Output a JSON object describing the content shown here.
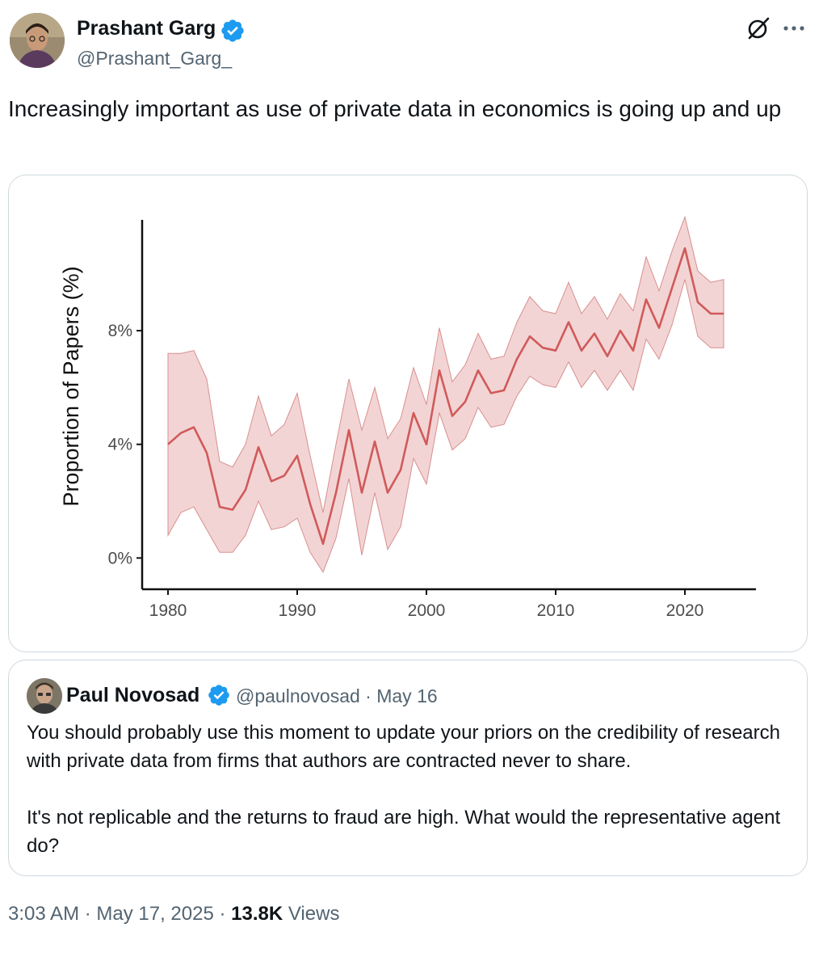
{
  "author": {
    "name": "Prashant Garg",
    "handle": "@Prashant_Garg_",
    "verified": true
  },
  "tweet": {
    "text": "Increasingly important as use of private data in economics is going up and up"
  },
  "icons": {
    "verified": "verified-badge-icon",
    "grok": "grok-icon",
    "more": "more-icon"
  },
  "colors": {
    "verified": "#1d9bf0",
    "text": "#0f1419",
    "muted": "#536471",
    "line": "#d05a5a",
    "band": "#f3d4d4"
  },
  "chart_data": {
    "type": "line",
    "ylabel": "Proportion of Papers (%)",
    "xlabel": "",
    "xlim": [
      1978,
      2025.5
    ],
    "ylim": [
      -1.1,
      11.9
    ],
    "x_ticks": [
      1980,
      1990,
      2000,
      2010,
      2020
    ],
    "x_tick_labels": [
      "1980",
      "1990",
      "2000",
      "2010",
      "2020"
    ],
    "y_ticks": [
      0,
      4,
      8
    ],
    "y_tick_labels": [
      "0%",
      "4%",
      "8%"
    ],
    "grid": false,
    "legend": "none",
    "series": [
      {
        "x": [
          1980,
          1981,
          1982,
          1983,
          1984,
          1985,
          1986,
          1987,
          1988,
          1989,
          1990,
          1991,
          1992,
          1993,
          1994,
          1995,
          1996,
          1997,
          1998,
          1999,
          2000,
          2001,
          2002,
          2003,
          2004,
          2005,
          2006,
          2007,
          2008,
          2009,
          2010,
          2011,
          2012,
          2013,
          2014,
          2015,
          2016,
          2017,
          2018,
          2019,
          2020,
          2021,
          2022,
          2023
        ],
        "values": [
          4.0,
          4.4,
          4.6,
          3.7,
          1.8,
          1.7,
          2.4,
          3.9,
          2.7,
          2.9,
          3.6,
          1.9,
          0.5,
          2.3,
          4.5,
          2.3,
          4.1,
          2.3,
          3.1,
          5.1,
          4.0,
          6.6,
          5.0,
          5.5,
          6.6,
          5.8,
          5.9,
          7.0,
          7.8,
          7.4,
          7.3,
          8.3,
          7.3,
          7.9,
          7.1,
          8.0,
          7.3,
          9.1,
          8.1,
          9.5,
          10.9,
          9.0,
          8.6,
          8.6
        ],
        "lower": [
          0.8,
          1.6,
          1.8,
          1.0,
          0.2,
          0.2,
          0.8,
          2.0,
          1.0,
          1.1,
          1.4,
          0.2,
          -0.5,
          0.7,
          2.8,
          0.1,
          2.3,
          0.3,
          1.1,
          3.5,
          2.6,
          5.1,
          3.8,
          4.2,
          5.3,
          4.6,
          4.7,
          5.7,
          6.4,
          6.1,
          6.0,
          6.9,
          6.0,
          6.6,
          5.9,
          6.6,
          5.9,
          7.7,
          7.0,
          8.2,
          9.8,
          7.8,
          7.4,
          7.4
        ],
        "upper": [
          7.2,
          7.2,
          7.3,
          6.3,
          3.4,
          3.2,
          4.0,
          5.7,
          4.3,
          4.7,
          5.8,
          3.6,
          1.6,
          4.0,
          6.3,
          4.5,
          6.0,
          4.2,
          4.9,
          6.7,
          5.4,
          8.1,
          6.2,
          6.8,
          7.9,
          7.0,
          7.1,
          8.3,
          9.2,
          8.7,
          8.6,
          9.7,
          8.6,
          9.2,
          8.4,
          9.3,
          8.7,
          10.6,
          9.4,
          10.8,
          12.0,
          10.1,
          9.7,
          9.8
        ]
      }
    ]
  },
  "quote": {
    "name": "Paul Novosad",
    "meta": "@paulnovosad · May 16",
    "verified": true,
    "paragraph1": "You should probably use this moment to update your priors on the credibility of research with private data from firms that authors are contracted never to share.",
    "paragraph2": "It's not replicable and the returns to fraud are high. What would the representative agent do?"
  },
  "footer": {
    "time_date": "3:03 AM · May 17, 2025 · ",
    "views_count": "13.8K",
    "views_label": " Views"
  }
}
